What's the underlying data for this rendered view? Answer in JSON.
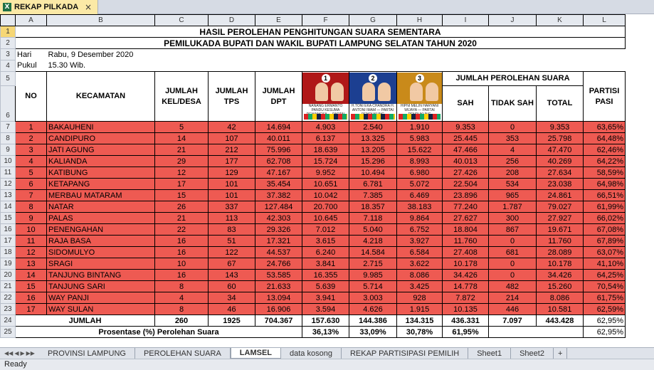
{
  "window": {
    "doc_tab": "REKAP PILKADA",
    "close_glyph": "×",
    "excel_glyph": "X"
  },
  "columns": [
    "A",
    "B",
    "C",
    "D",
    "E",
    "F",
    "G",
    "H",
    "I",
    "J",
    "K",
    "L"
  ],
  "title1": "HASIL PEROLEHAN PENGHITUNGAN SUARA SEMENTARA",
  "title2": "PEMILUKADA BUPATI DAN WAKIL BUPATI LAMPUNG SELATAN TAHUN 2020",
  "info": {
    "hari_label": "Hari",
    "hari_value": "Rabu, 9 Desember 2020",
    "pukul_label": "Pukul",
    "pukul_value": "15.30 Wib."
  },
  "headers": {
    "no": "NO",
    "kecamatan": "KECAMATAN",
    "kel": "JUMLAH KEL/DESA",
    "tps": "JUMLAH TPS",
    "dpt": "JUMLAH DPT",
    "perolehan": "JUMLAH PEROLEHAN SUARA",
    "sah": "SAH",
    "tidak_sah": "TIDAK SAH",
    "total": "TOTAL",
    "partisipasi": "PARTISI PASI"
  },
  "candidates": [
    {
      "num": "1",
      "name": "NANANG ERMANTO PANDU KESUMA DEWANGSA",
      "party": "PARTAI PENDUKUNG",
      "theme": "red"
    },
    {
      "num": "2",
      "name": "H.TONI EKA CHANDRA H. ANTONI IMAM",
      "party": "PARTAI PENDUKUNG",
      "theme": "blue"
    },
    {
      "num": "3",
      "name": "HIPNI MELIN HARYANI WIJAYA",
      "party": "PARTAI PENDUKUNG",
      "theme": "gold"
    }
  ],
  "rows": [
    {
      "rn": "7",
      "no": "1",
      "kec": "BAKAUHENI",
      "kel": "5",
      "tps": "42",
      "dpt": "14.694",
      "c1": "4.903",
      "c2": "2.540",
      "c3": "1.910",
      "sah": "9.353",
      "ts": "0",
      "total": "9.353",
      "pp": "63,65%"
    },
    {
      "rn": "8",
      "no": "2",
      "kec": "CANDIPURO",
      "kel": "14",
      "tps": "107",
      "dpt": "40.011",
      "c1": "6.137",
      "c2": "13.325",
      "c3": "5.983",
      "sah": "25.445",
      "ts": "353",
      "total": "25.798",
      "pp": "64,48%"
    },
    {
      "rn": "9",
      "no": "3",
      "kec": "JATI AGUNG",
      "kel": "21",
      "tps": "212",
      "dpt": "75.996",
      "c1": "18.639",
      "c2": "13.205",
      "c3": "15.622",
      "sah": "47.466",
      "ts": "4",
      "total": "47.470",
      "pp": "62,46%"
    },
    {
      "rn": "10",
      "no": "4",
      "kec": "KALIANDA",
      "kel": "29",
      "tps": "177",
      "dpt": "62.708",
      "c1": "15.724",
      "c2": "15.296",
      "c3": "8.993",
      "sah": "40.013",
      "ts": "256",
      "total": "40.269",
      "pp": "64,22%"
    },
    {
      "rn": "11",
      "no": "5",
      "kec": "KATIBUNG",
      "kel": "12",
      "tps": "129",
      "dpt": "47.167",
      "c1": "9.952",
      "c2": "10.494",
      "c3": "6.980",
      "sah": "27.426",
      "ts": "208",
      "total": "27.634",
      "pp": "58,59%"
    },
    {
      "rn": "12",
      "no": "6",
      "kec": "KETAPANG",
      "kel": "17",
      "tps": "101",
      "dpt": "35.454",
      "c1": "10.651",
      "c2": "6.781",
      "c3": "5.072",
      "sah": "22.504",
      "ts": "534",
      "total": "23.038",
      "pp": "64,98%"
    },
    {
      "rn": "13",
      "no": "7",
      "kec": "MERBAU MATARAM",
      "kel": "15",
      "tps": "101",
      "dpt": "37.382",
      "c1": "10.042",
      "c2": "7.385",
      "c3": "6.469",
      "sah": "23.896",
      "ts": "965",
      "total": "24.861",
      "pp": "66,51%"
    },
    {
      "rn": "14",
      "no": "8",
      "kec": "NATAR",
      "kel": "26",
      "tps": "337",
      "dpt": "127.484",
      "c1": "20.700",
      "c2": "18.357",
      "c3": "38.183",
      "sah": "77.240",
      "ts": "1.787",
      "total": "79.027",
      "pp": "61,99%"
    },
    {
      "rn": "15",
      "no": "9",
      "kec": "PALAS",
      "kel": "21",
      "tps": "113",
      "dpt": "42.303",
      "c1": "10.645",
      "c2": "7.118",
      "c3": "9.864",
      "sah": "27.627",
      "ts": "300",
      "total": "27.927",
      "pp": "66,02%"
    },
    {
      "rn": "16",
      "no": "10",
      "kec": "PENENGAHAN",
      "kel": "22",
      "tps": "83",
      "dpt": "29.326",
      "c1": "7.012",
      "c2": "5.040",
      "c3": "6.752",
      "sah": "18.804",
      "ts": "867",
      "total": "19.671",
      "pp": "67,08%"
    },
    {
      "rn": "17",
      "no": "11",
      "kec": "RAJA BASA",
      "kel": "16",
      "tps": "51",
      "dpt": "17.321",
      "c1": "3.615",
      "c2": "4.218",
      "c3": "3.927",
      "sah": "11.760",
      "ts": "0",
      "total": "11.760",
      "pp": "67,89%"
    },
    {
      "rn": "18",
      "no": "12",
      "kec": "SIDOMULYO",
      "kel": "16",
      "tps": "122",
      "dpt": "44.537",
      "c1": "6.240",
      "c2": "14.584",
      "c3": "6.584",
      "sah": "27.408",
      "ts": "681",
      "total": "28.089",
      "pp": "63,07%"
    },
    {
      "rn": "19",
      "no": "13",
      "kec": "SRAGI",
      "kel": "10",
      "tps": "67",
      "dpt": "24.766",
      "c1": "3.841",
      "c2": "2.715",
      "c3": "3.622",
      "sah": "10.178",
      "ts": "0",
      "total": "10.178",
      "pp": "41,10%"
    },
    {
      "rn": "20",
      "no": "14",
      "kec": "TANJUNG BINTANG",
      "kel": "16",
      "tps": "143",
      "dpt": "53.585",
      "c1": "16.355",
      "c2": "9.985",
      "c3": "8.086",
      "sah": "34.426",
      "ts": "0",
      "total": "34.426",
      "pp": "64,25%"
    },
    {
      "rn": "21",
      "no": "15",
      "kec": "TANJUNG SARI",
      "kel": "8",
      "tps": "60",
      "dpt": "21.633",
      "c1": "5.639",
      "c2": "5.714",
      "c3": "3.425",
      "sah": "14.778",
      "ts": "482",
      "total": "15.260",
      "pp": "70,54%"
    },
    {
      "rn": "22",
      "no": "16",
      "kec": "WAY PANJI",
      "kel": "4",
      "tps": "34",
      "dpt": "13.094",
      "c1": "3.941",
      "c2": "3.003",
      "c3": "928",
      "sah": "7.872",
      "ts": "214",
      "total": "8.086",
      "pp": "61,75%"
    },
    {
      "rn": "23",
      "no": "17",
      "kec": "WAY SULAN",
      "kel": "8",
      "tps": "46",
      "dpt": "16.906",
      "c1": "3.594",
      "c2": "4.626",
      "c3": "1.915",
      "sah": "10.135",
      "ts": "446",
      "total": "10.581",
      "pp": "62,59%"
    }
  ],
  "totals": {
    "label": "JUMLAH",
    "kel": "260",
    "tps": "1925",
    "dpt": "704.367",
    "c1": "157.630",
    "c2": "144.386",
    "c3": "134.315",
    "sah": "436.331",
    "ts": "7.097",
    "total": "443.428",
    "pp": "62,95%"
  },
  "percent": {
    "label": "Prosentase (%) Perolehan Suara",
    "c1": "36,13%",
    "c2": "33,09%",
    "c3": "30,78%",
    "sah": "61,95%",
    "pp": "62,95%"
  },
  "sheet_tabs": [
    "PROVINSI LAMPUNG",
    "PEROLEHAN SUARA",
    "LAMSEL",
    "data kosong",
    "REKAP PARTISIPASI PEMILIH",
    "Sheet1",
    "Sheet2"
  ],
  "active_tab": "LAMSEL",
  "nav_glyphs": [
    "◀◀",
    "◀",
    "▶",
    "▶▶"
  ],
  "status": "Ready"
}
